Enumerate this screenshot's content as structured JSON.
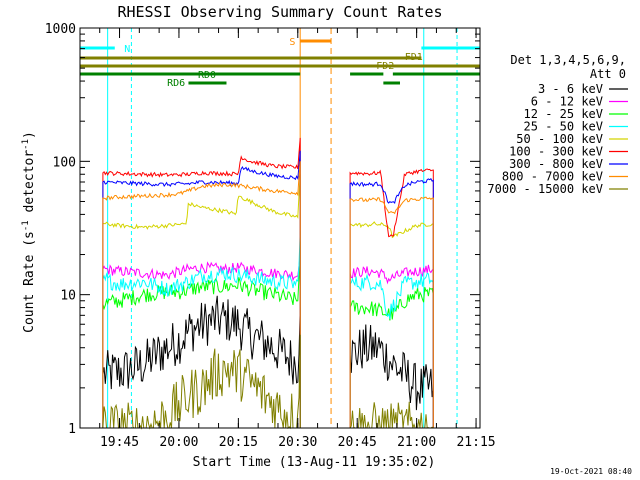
{
  "chart_data": {
    "type": "line",
    "title": "RHESSI Observing Summary Count Rates",
    "xlabel": "Start Time (13-Aug-11 19:35:02)",
    "ylabel_main": "Count Rate (s",
    "ylabel_sup1": "-1",
    "ylabel_mid": " detector",
    "ylabel_sup2": "-1",
    "ylabel_end": ")",
    "yscale": "log",
    "ylim": [
      1,
      1000
    ],
    "xlim": [
      19.5837,
      21.2666
    ],
    "x_ticks": [
      {
        "label": "19:45",
        "value": 19.75
      },
      {
        "label": "20:00",
        "value": 20.0
      },
      {
        "label": "20:15",
        "value": 20.25
      },
      {
        "label": "20:30",
        "value": 20.5
      },
      {
        "label": "20:45",
        "value": 20.75
      },
      {
        "label": "21:00",
        "value": 21.0
      },
      {
        "label": "21:15",
        "value": 21.25
      }
    ],
    "y_ticks": [
      {
        "label": "1",
        "value": 1
      },
      {
        "label": "10",
        "value": 10
      },
      {
        "label": "100",
        "value": 100
      },
      {
        "label": "1000",
        "value": 1000
      }
    ],
    "legend_header": [
      "Det 1,3,4,5,6,9,",
      "Att 0"
    ],
    "legend": [
      {
        "label": "3 - 6 keV",
        "color": "#000000"
      },
      {
        "label": "6 - 12 keV",
        "color": "#ff00ff"
      },
      {
        "label": "12 - 25 keV",
        "color": "#00ff00"
      },
      {
        "label": "25 - 50 keV",
        "color": "#00ffff"
      },
      {
        "label": "50 - 100 keV",
        "color": "#d4d400"
      },
      {
        "label": "100 - 300 keV",
        "color": "#ff0000"
      },
      {
        "label": "300 - 800 keV",
        "color": "#0000ff"
      },
      {
        "label": "800 - 7000 keV",
        "color": "#ff8c00"
      },
      {
        "label": "7000 - 15000 keV",
        "color": "#808000"
      }
    ],
    "flag_labels": [
      {
        "text": "N",
        "color": "#00ffff"
      },
      {
        "text": "S",
        "color": "#ff8c00"
      },
      {
        "text": "FD1",
        "color": "#808000"
      },
      {
        "text": "FD2",
        "color": "#808000"
      },
      {
        "text": "RD0",
        "color": "#008000"
      },
      {
        "text": "RD6",
        "color": "#008000"
      }
    ],
    "timestamp": "19-Oct-2021 08:40",
    "segments": [
      {
        "x0": 19.68,
        "x1": 20.51
      },
      {
        "x0": 20.72,
        "x1": 21.07
      }
    ],
    "series": [
      {
        "name": "3 - 6 keV",
        "color": "#000000",
        "x": [
          19.68,
          19.78,
          19.85,
          19.9,
          19.95,
          20.0,
          20.05,
          20.1,
          20.15,
          20.2,
          20.25,
          20.3,
          20.35,
          20.4,
          20.45,
          20.5,
          20.51,
          20.72,
          20.78,
          20.84,
          20.9,
          20.95,
          21.0,
          21.04,
          21.07
        ],
        "y": [
          2.5,
          2.7,
          3.0,
          3.5,
          4.0,
          4.5,
          5.5,
          6.0,
          6.5,
          6.5,
          6.0,
          5.0,
          4.5,
          4.0,
          3.5,
          3.0,
          8.0,
          3.5,
          4.0,
          4.0,
          3.0,
          2.5,
          2.0,
          2.0,
          2.0
        ]
      },
      {
        "name": "6 - 12 keV",
        "color": "#ff00ff",
        "x": [
          19.68,
          19.75,
          19.85,
          19.95,
          20.04,
          20.1,
          20.2,
          20.25,
          20.3,
          20.4,
          20.5,
          20.51,
          20.72,
          20.8,
          20.85,
          20.88,
          20.95,
          21.0,
          21.07
        ],
        "y": [
          15.5,
          15.0,
          14.5,
          14.0,
          15.5,
          16.0,
          15.5,
          16.0,
          15.5,
          14.5,
          14.0,
          20.0,
          14.5,
          15.0,
          14.5,
          13.0,
          14.5,
          15.0,
          15.5
        ]
      },
      {
        "name": "12 - 25 keV",
        "color": "#00ff00",
        "x": [
          19.68,
          19.75,
          19.85,
          19.95,
          20.0,
          20.05,
          20.1,
          20.2,
          20.25,
          20.3,
          20.4,
          20.5,
          20.51,
          20.72,
          20.8,
          20.85,
          20.9,
          20.95,
          21.0,
          21.07
        ],
        "y": [
          8.5,
          9.0,
          10.0,
          10.5,
          10.5,
          11.0,
          11.5,
          11.5,
          12.0,
          11.0,
          10.0,
          9.0,
          25.0,
          8.0,
          8.0,
          7.5,
          7.0,
          9.0,
          10.0,
          10.0
        ]
      },
      {
        "name": "25 - 50 keV",
        "color": "#00ffff",
        "x": [
          19.68,
          19.75,
          19.85,
          19.95,
          20.04,
          20.1,
          20.2,
          20.25,
          20.3,
          20.4,
          20.5,
          20.51,
          20.72,
          20.8,
          20.85,
          20.88,
          20.95,
          21.0,
          21.07
        ],
        "y": [
          13.0,
          12.0,
          12.5,
          11.0,
          12.5,
          14.0,
          14.5,
          14.0,
          13.5,
          12.5,
          12.0,
          30.0,
          12.0,
          12.5,
          12.0,
          7.0,
          12.0,
          12.5,
          13.0
        ]
      },
      {
        "name": "50 - 100 keV",
        "color": "#d4d400",
        "x": [
          19.68,
          19.75,
          19.85,
          19.95,
          20.03,
          20.04,
          20.1,
          20.2,
          20.24,
          20.25,
          20.3,
          20.4,
          20.5,
          20.51,
          20.72,
          20.78,
          20.82,
          20.88,
          20.9,
          20.95,
          21.0,
          21.07
        ],
        "y": [
          34.0,
          33.0,
          32.0,
          33.0,
          34.0,
          48.0,
          45.0,
          42.0,
          40.0,
          55.0,
          50.0,
          42.0,
          38.0,
          80.0,
          34.0,
          33.0,
          34.0,
          33.0,
          27.0,
          30.0,
          33.0,
          34.0
        ]
      },
      {
        "name": "100 - 300 keV",
        "color": "#ff0000",
        "x": [
          19.68,
          19.75,
          19.85,
          19.95,
          20.04,
          20.1,
          20.2,
          20.25,
          20.26,
          20.3,
          20.4,
          20.5,
          20.51,
          20.72,
          20.8,
          20.85,
          20.88,
          20.9,
          20.95,
          21.0,
          21.07
        ],
        "y": [
          82.0,
          81.0,
          80.0,
          79.0,
          80.0,
          82.0,
          81.0,
          80.0,
          108.0,
          100.0,
          92.0,
          90.0,
          150.0,
          82.0,
          81.0,
          82.0,
          28.0,
          27.0,
          80.0,
          84.0,
          86.0
        ]
      },
      {
        "name": "300 - 800 keV",
        "color": "#0000ff",
        "x": [
          19.68,
          19.75,
          19.85,
          19.95,
          20.04,
          20.1,
          20.2,
          20.25,
          20.26,
          20.3,
          20.4,
          20.5,
          20.51,
          20.72,
          20.8,
          20.85,
          20.88,
          20.9,
          20.95,
          21.0,
          21.07
        ],
        "y": [
          70.0,
          69.0,
          68.0,
          67.0,
          68.0,
          70.0,
          69.0,
          68.0,
          90.0,
          85.0,
          78.0,
          75.0,
          120.0,
          68.0,
          67.0,
          68.0,
          50.0,
          48.0,
          66.0,
          70.0,
          72.0
        ]
      },
      {
        "name": "800 - 7000 keV",
        "color": "#ff8c00",
        "x": [
          19.68,
          19.75,
          19.85,
          19.95,
          20.0,
          20.04,
          20.1,
          20.2,
          20.25,
          20.3,
          20.4,
          20.5,
          20.51,
          20.72,
          20.8,
          20.85,
          20.88,
          20.9,
          20.95,
          21.0,
          21.07
        ],
        "y": [
          53.0,
          54.0,
          55.0,
          56.0,
          57.0,
          60.0,
          65.0,
          67.0,
          66.0,
          64.0,
          60.0,
          58.0,
          100.0,
          52.0,
          51.0,
          52.0,
          42.0,
          40.0,
          51.0,
          52.0,
          53.0
        ]
      },
      {
        "name": "7000 - 15000 keV",
        "color": "#808000",
        "x": [
          19.68,
          19.75,
          19.85,
          19.95,
          20.0,
          20.05,
          20.1,
          20.15,
          20.2,
          20.25,
          20.3,
          20.35,
          20.4,
          20.45,
          20.5,
          20.51,
          20.72,
          20.8,
          20.85,
          20.88,
          20.95,
          21.0,
          21.07
        ],
        "y": [
          1.0,
          1.0,
          1.0,
          1.2,
          1.5,
          1.8,
          2.0,
          2.5,
          2.8,
          2.6,
          2.2,
          1.8,
          1.5,
          1.3,
          1.2,
          5.0,
          1.0,
          1.0,
          1.0,
          1.0,
          1.0,
          1.0,
          1.0
        ]
      }
    ]
  }
}
